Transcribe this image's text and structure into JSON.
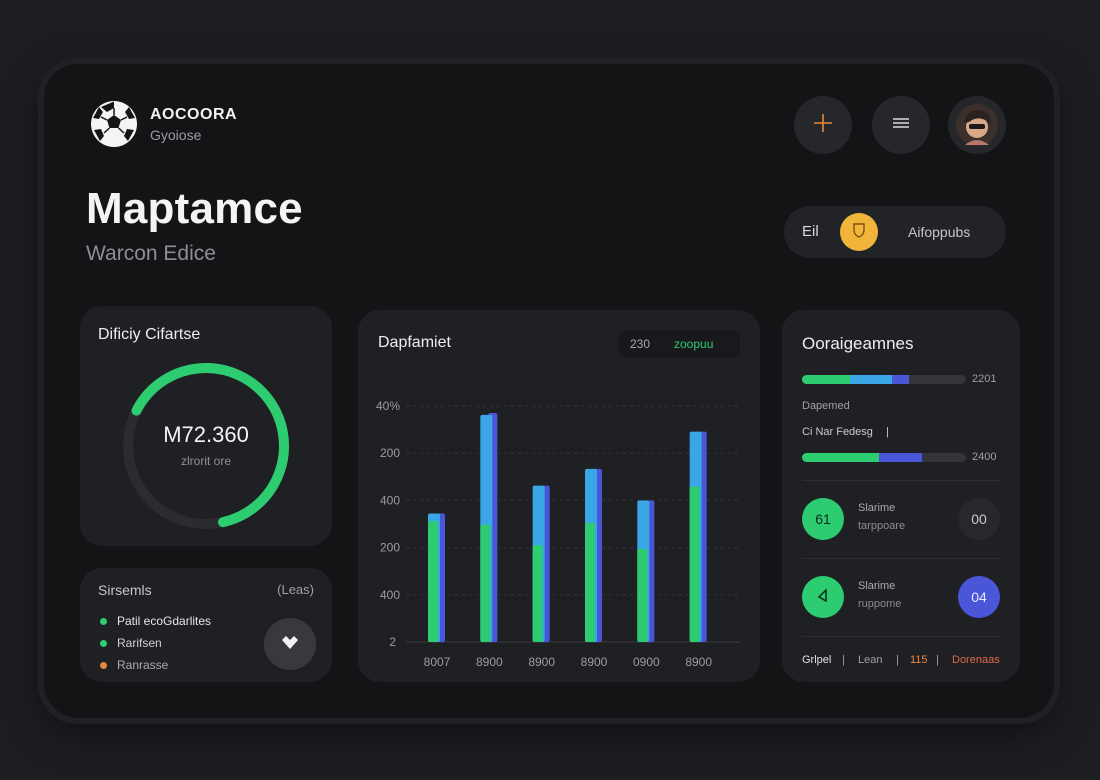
{
  "header": {
    "brand_name": "AOCOORA",
    "brand_sub": "Gyoiose",
    "icons": [
      "soccer-ball-icon",
      "plus-icon",
      "menu-icon",
      "avatar"
    ]
  },
  "page": {
    "title": "Maptamce",
    "subtitle": "Warcon Edice"
  },
  "toggle": {
    "left_label": "Eil",
    "right_label": "Aifoppubs"
  },
  "gauge_card": {
    "title": "Dificiy Cifartse",
    "value": "M72.360",
    "sub": "zlrorit ore",
    "progress": 0.64,
    "color": "#2ecc71"
  },
  "legend_card": {
    "title": "Sirsemls",
    "count": "(Leas)",
    "items": [
      {
        "label": "Patil ecoGdarlites",
        "color": "#2ecc71"
      },
      {
        "label": "Rarifsen",
        "color": "#2ecc71"
      },
      {
        "label": "Ranrasse",
        "color": "#e8873a"
      }
    ]
  },
  "chart_card": {
    "title": "Dapfamiet",
    "chip_a": "230",
    "chip_b": "zoopuu"
  },
  "chart_data": {
    "type": "bar",
    "yticks": [
      "40%",
      "200",
      "400",
      "200",
      "400",
      "2"
    ],
    "categories": [
      "8007",
      "8900",
      "8900",
      "8900",
      "0900",
      "8900"
    ],
    "series": [
      {
        "values": [
          130,
          126,
          104,
          128,
          100,
          167
        ],
        "color": "#2ecc71"
      },
      {
        "values": [
          138,
          246,
          168,
          186,
          152,
          226
        ],
        "color": "#4a56d8"
      },
      {
        "values": [
          138,
          244,
          168,
          186,
          152,
          226
        ],
        "color": "#3aa6e6"
      }
    ],
    "ylim": [
      0,
      260
    ],
    "grid": true
  },
  "right_card": {
    "title": "Ooraigeamnes",
    "bar1": {
      "value": "2201",
      "segments": [
        0.29,
        0.26,
        0.1
      ]
    },
    "label_a": "Dapemed",
    "label_b": "Ci Nar Fedesg",
    "label_b_suffix": "|",
    "bar2": {
      "value": "2400",
      "segments": [
        0.47,
        0.26
      ]
    },
    "row1": {
      "badge": "61",
      "title": "Slarime",
      "sub": "tarppoare",
      "right": "00"
    },
    "row2": {
      "title": "Slarime",
      "sub": "ruppome",
      "right": "04"
    },
    "footer": {
      "a": "Grlpel",
      "b": "Lean",
      "c": "115",
      "d": "Dorenaas"
    }
  },
  "colors": {
    "accent_green": "#2ecc71",
    "accent_blue": "#3aa6e6",
    "accent_indigo": "#4a56d8",
    "accent_orange": "#e8873a",
    "accent_yellow": "#f2b53b"
  }
}
